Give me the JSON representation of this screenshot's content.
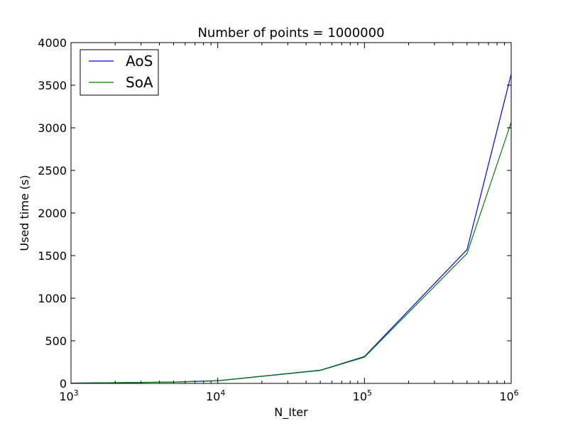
{
  "chart_data": {
    "type": "line",
    "title": "Number of points = 1000000",
    "xlabel": "N_Iter",
    "ylabel": "Used time (s)",
    "xscale": "log",
    "xlim": [
      1000,
      1000000
    ],
    "ylim": [
      0,
      4000
    ],
    "x_ticks": [
      {
        "value": 1000,
        "base": "10",
        "exp": "3"
      },
      {
        "value": 10000,
        "base": "10",
        "exp": "4"
      },
      {
        "value": 100000,
        "base": "10",
        "exp": "5"
      },
      {
        "value": 1000000,
        "base": "10",
        "exp": "6"
      }
    ],
    "y_ticks": [
      0,
      500,
      1000,
      1500,
      2000,
      2500,
      3000,
      3500,
      4000
    ],
    "grid": false,
    "legend_position": "top-left",
    "series": [
      {
        "name": "AoS",
        "color": "#0000ff",
        "points": [
          [
            1000,
            3
          ],
          [
            5000,
            16
          ],
          [
            10000,
            32
          ],
          [
            50000,
            155
          ],
          [
            100000,
            315
          ],
          [
            500000,
            1570
          ],
          [
            1000000,
            3630
          ]
        ]
      },
      {
        "name": "SoA",
        "color": "#008000",
        "points": [
          [
            1000,
            3
          ],
          [
            5000,
            15
          ],
          [
            10000,
            30
          ],
          [
            50000,
            152
          ],
          [
            100000,
            308
          ],
          [
            500000,
            1525
          ],
          [
            1000000,
            3065
          ]
        ]
      }
    ]
  }
}
